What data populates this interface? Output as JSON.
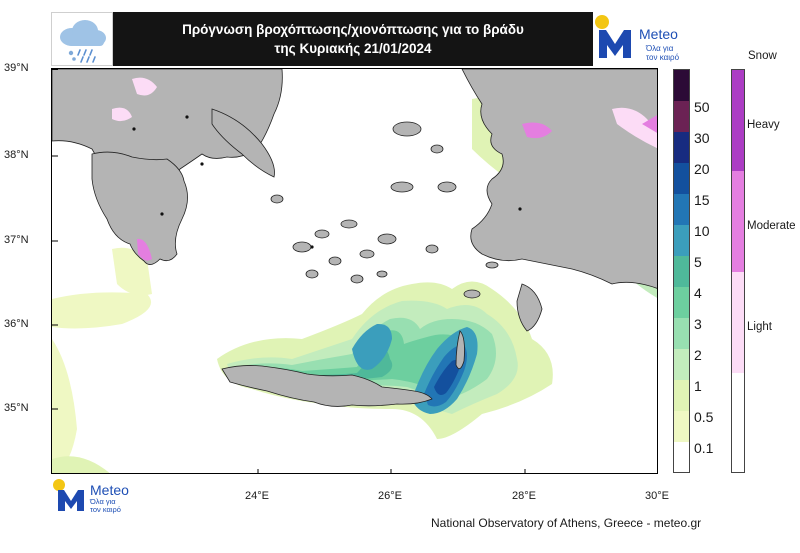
{
  "header": {
    "title_line1": "Πρόγνωση βροχόπτωσης/χιονόπτωσης για το βράδυ",
    "title_line2": "της Κυριακής 21/01/2024",
    "weather_icon": "snow-rain-cloud-icon",
    "logo": {
      "word": "Meteo",
      "tagline_line1": "Όλα για",
      "tagline_line2": "τον καιρό"
    }
  },
  "map": {
    "latitude_labels": [
      "39°N",
      "38°N",
      "37°N",
      "36°N",
      "35°N"
    ],
    "longitude_labels": [
      "24°E",
      "26°E",
      "28°E",
      "30°E"
    ],
    "land_color": "#b4b4b4",
    "sea_color": "#ffffff"
  },
  "rain_legend": {
    "levels": [
      "0.1",
      "0.5",
      "1",
      "2",
      "3",
      "4",
      "5",
      "10",
      "15",
      "20",
      "30",
      "50"
    ],
    "colors": [
      "#ffffff",
      "#eff8c3",
      "#e0f3b5",
      "#c3ecbd",
      "#98dfb1",
      "#6dcf9f",
      "#4fb99a",
      "#3b9ebc",
      "#2276b5",
      "#13509e",
      "#172b80",
      "#6b2254",
      "#2c0a36"
    ]
  },
  "snow_legend": {
    "title": "Snow",
    "levels": [
      "Light",
      "Moderate",
      "Heavy"
    ],
    "colors": [
      "#ffffff",
      "#fcdcf6",
      "#e47ee0",
      "#ac3dc4"
    ]
  },
  "footer": {
    "logo_word": "Meteo",
    "logo_tagline_line1": "Όλα για",
    "logo_tagline_line2": "τον καιρό",
    "credit": "National Observatory of Athens, Greece - meteo.gr"
  }
}
